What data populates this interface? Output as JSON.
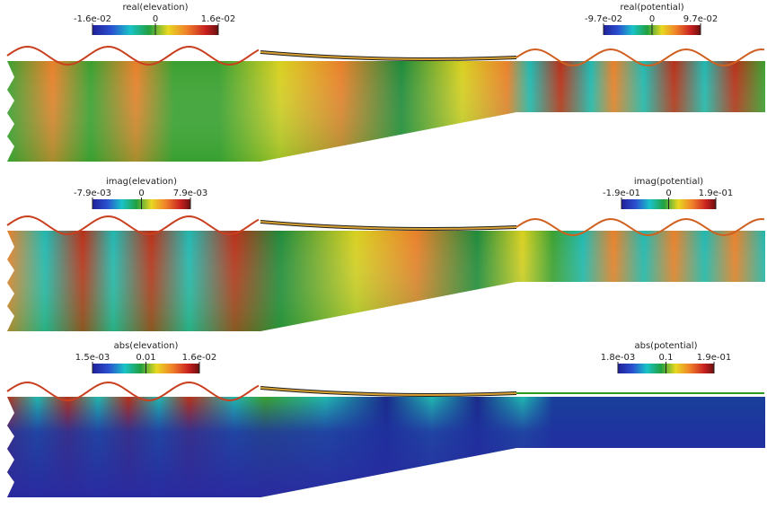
{
  "panels": [
    {
      "elevation_bar": {
        "title": "real(elevation)",
        "min": "-1.6e-02",
        "mid": "0",
        "max": "1.6e-02"
      },
      "potential_bar": {
        "title": "real(potential)",
        "min": "-9.7e-02",
        "mid": "0",
        "max": "9.7e-02"
      }
    },
    {
      "elevation_bar": {
        "title": "imag(elevation)",
        "min": "-7.9e-03",
        "mid": "0",
        "max": "7.9e-03"
      },
      "potential_bar": {
        "title": "imag(potential)",
        "min": "-1.9e-01",
        "mid": "0",
        "max": "1.9e-01"
      }
    },
    {
      "elevation_bar": {
        "title": "abs(elevation)",
        "min": "1.5e-03",
        "mid": "0.01",
        "max": "1.6e-02"
      },
      "potential_bar": {
        "title": "abs(potential)",
        "min": "1.8e-03",
        "mid": "0.1",
        "max": "1.9e-01"
      }
    }
  ]
}
